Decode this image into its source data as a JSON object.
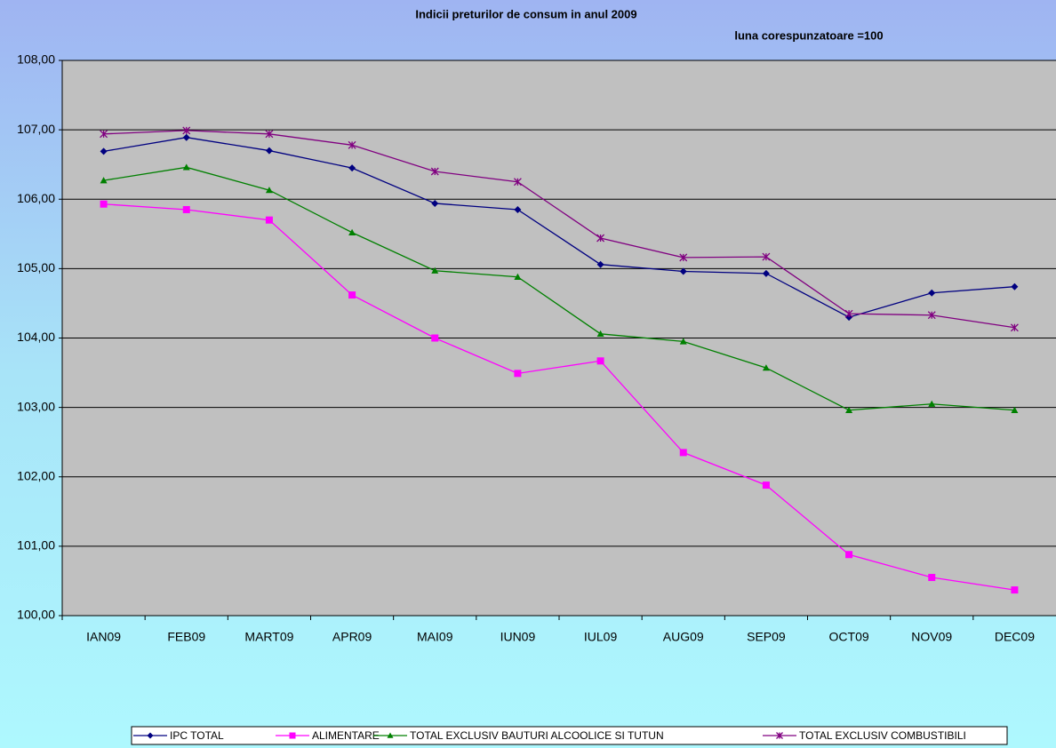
{
  "chart_data": {
    "type": "line",
    "title": "Indicii preturilor de consum in anul 2009",
    "subtitle": "luna corespunzatoare =100",
    "categories": [
      "IAN09",
      "FEB09",
      "MART09",
      "APR09",
      "MAI09",
      "IUN09",
      "IUL09",
      "AUG09",
      "SEP09",
      "OCT09",
      "NOV09",
      "DEC09"
    ],
    "series": [
      {
        "name": "IPC TOTAL",
        "color": "#000080",
        "marker": "diamond",
        "values": [
          106.69,
          106.89,
          106.7,
          106.45,
          105.94,
          105.85,
          105.06,
          104.96,
          104.93,
          104.3,
          104.65,
          104.74
        ]
      },
      {
        "name": "ALIMENTARE",
        "color": "#ff00ff",
        "marker": "square",
        "values": [
          105.93,
          105.85,
          105.7,
          104.62,
          104.0,
          103.49,
          103.67,
          102.35,
          101.88,
          100.88,
          100.55,
          100.37
        ]
      },
      {
        "name": "TOTAL EXCLUSIV BAUTURI ALCOOLICE SI TUTUN",
        "color": "#008000",
        "marker": "triangle",
        "values": [
          106.27,
          106.46,
          106.13,
          105.52,
          104.97,
          104.88,
          104.06,
          103.95,
          103.57,
          102.96,
          103.05,
          102.96
        ]
      },
      {
        "name": "TOTAL EXCLUSIV COMBUSTIBILI",
        "color": "#800080",
        "marker": "star",
        "values": [
          106.94,
          106.99,
          106.94,
          106.78,
          106.4,
          106.25,
          105.44,
          105.16,
          105.17,
          104.35,
          104.33,
          104.15
        ]
      }
    ],
    "ylim": [
      100,
      108
    ],
    "yticks": [
      {
        "value": 100,
        "label": "100,00"
      },
      {
        "value": 101,
        "label": "101,00"
      },
      {
        "value": 102,
        "label": "102,00"
      },
      {
        "value": 103,
        "label": "103,00"
      },
      {
        "value": 104,
        "label": "104,00"
      },
      {
        "value": 105,
        "label": "105,00"
      },
      {
        "value": 106,
        "label": "106,00"
      },
      {
        "value": 107,
        "label": "107,00"
      },
      {
        "value": 108,
        "label": "108,00"
      }
    ],
    "grid": true
  }
}
